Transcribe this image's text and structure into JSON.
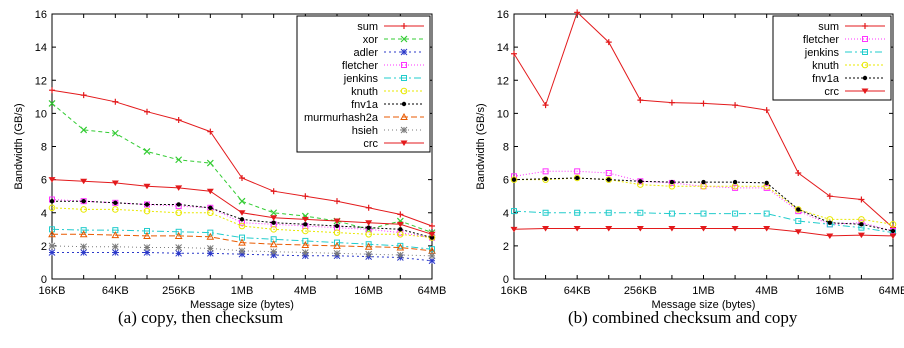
{
  "chart_data": [
    {
      "type": "line",
      "caption": "(a) copy, then checksum",
      "xlabel": "Message size (bytes)",
      "ylabel": "Bandwidth (GB/s)",
      "x": [
        "16KB",
        "32KB",
        "64KB",
        "128KB",
        "256KB",
        "512KB",
        "1MB",
        "2MB",
        "4MB",
        "8MB",
        "16MB",
        "32MB",
        "64MB"
      ],
      "xticks": [
        "16KB",
        "64KB",
        "256KB",
        "1MB",
        "4MB",
        "16MB",
        "64MB"
      ],
      "ylim": [
        0,
        16
      ],
      "yticks": [
        0,
        2,
        4,
        6,
        8,
        10,
        12,
        14,
        16
      ],
      "legend_position": "top-right",
      "series": [
        {
          "name": "sum",
          "color": "#e31a1c",
          "dash": "",
          "marker": "plus",
          "values": [
            11.4,
            11.1,
            10.7,
            10.1,
            9.6,
            8.9,
            6.1,
            5.3,
            5.0,
            4.7,
            4.3,
            3.9,
            3.2
          ]
        },
        {
          "name": "xor",
          "color": "#33cc33",
          "dash": "4 3",
          "marker": "x",
          "values": [
            10.6,
            9.0,
            8.8,
            7.7,
            7.2,
            7.0,
            4.7,
            4.0,
            3.8,
            3.5,
            3.0,
            3.5,
            2.8
          ]
        },
        {
          "name": "adler",
          "color": "#2b38c9",
          "dash": "2 3",
          "marker": "star",
          "values": [
            1.6,
            1.6,
            1.6,
            1.6,
            1.55,
            1.55,
            1.5,
            1.45,
            1.4,
            1.4,
            1.35,
            1.3,
            1.1
          ]
        },
        {
          "name": "fletcher",
          "color": "#ff33ff",
          "dash": "1 2",
          "marker": "square",
          "values": [
            4.8,
            4.7,
            4.6,
            4.5,
            4.4,
            4.3,
            3.4,
            3.3,
            3.2,
            3.1,
            3.0,
            2.8,
            2.5
          ]
        },
        {
          "name": "jenkins",
          "color": "#22cccc",
          "dash": "7 3 2 3",
          "marker": "square",
          "values": [
            3.0,
            2.95,
            2.95,
            2.9,
            2.85,
            2.8,
            2.5,
            2.4,
            2.3,
            2.2,
            2.1,
            2.0,
            1.8
          ]
        },
        {
          "name": "knuth",
          "color": "#e8e800",
          "dash": "2 2",
          "marker": "circle",
          "values": [
            4.3,
            4.2,
            4.2,
            4.1,
            4.0,
            4.0,
            3.2,
            3.0,
            2.9,
            2.8,
            2.7,
            2.7,
            2.5
          ]
        },
        {
          "name": "fnv1a",
          "color": "#000000",
          "dash": "2 2",
          "marker": "dot",
          "values": [
            4.7,
            4.7,
            4.6,
            4.5,
            4.5,
            4.3,
            3.6,
            3.4,
            3.3,
            3.2,
            3.1,
            3.0,
            2.5
          ]
        },
        {
          "name": "murmurhash2a",
          "color": "#e85a00",
          "dash": "6 3",
          "marker": "triangle",
          "values": [
            2.7,
            2.7,
            2.65,
            2.6,
            2.6,
            2.55,
            2.2,
            2.1,
            2.05,
            2.0,
            1.95,
            1.9,
            1.7
          ]
        },
        {
          "name": "hsieh",
          "color": "#7a7a7a",
          "dash": "1 3",
          "marker": "star",
          "values": [
            2.0,
            1.95,
            1.95,
            1.9,
            1.9,
            1.85,
            1.7,
            1.65,
            1.6,
            1.55,
            1.5,
            1.45,
            1.4
          ]
        },
        {
          "name": "crc",
          "color": "#e31a1c",
          "dash": "",
          "marker": "tridown",
          "values": [
            6.0,
            5.9,
            5.8,
            5.6,
            5.5,
            5.3,
            4.0,
            3.7,
            3.6,
            3.5,
            3.4,
            3.3,
            2.7
          ]
        }
      ]
    },
    {
      "type": "line",
      "caption": "(b) combined checksum and copy",
      "xlabel": "Message size (bytes)",
      "ylabel": "Bandwidth (GB/s)",
      "x": [
        "16KB",
        "32KB",
        "64KB",
        "128KB",
        "256KB",
        "512KB",
        "1MB",
        "2MB",
        "4MB",
        "8MB",
        "16MB",
        "32MB",
        "64MB"
      ],
      "xticks": [
        "16KB",
        "64KB",
        "256KB",
        "1MB",
        "4MB",
        "16MB",
        "64MB"
      ],
      "ylim": [
        0,
        16
      ],
      "yticks": [
        0,
        2,
        4,
        6,
        8,
        10,
        12,
        14,
        16
      ],
      "legend_position": "top-right",
      "series": [
        {
          "name": "sum",
          "color": "#e31a1c",
          "dash": "",
          "marker": "plus",
          "values": [
            13.6,
            10.5,
            16.1,
            14.3,
            10.8,
            10.65,
            10.6,
            10.5,
            10.2,
            6.4,
            5.0,
            4.8,
            3.1
          ]
        },
        {
          "name": "fletcher",
          "color": "#ff33ff",
          "dash": "1 2",
          "marker": "square",
          "values": [
            6.2,
            6.5,
            6.5,
            6.4,
            5.9,
            5.8,
            5.6,
            5.5,
            5.5,
            4.1,
            3.3,
            3.4,
            2.9
          ]
        },
        {
          "name": "jenkins",
          "color": "#22cccc",
          "dash": "7 3 2 3",
          "marker": "square",
          "values": [
            4.1,
            4.0,
            4.0,
            4.0,
            4.0,
            3.95,
            3.95,
            3.95,
            3.95,
            3.5,
            3.3,
            3.1,
            2.8
          ]
        },
        {
          "name": "knuth",
          "color": "#e8e800",
          "dash": "2 2",
          "marker": "circle",
          "values": [
            6.0,
            6.0,
            6.1,
            6.0,
            5.7,
            5.6,
            5.6,
            5.6,
            5.6,
            4.2,
            3.6,
            3.6,
            3.3
          ]
        },
        {
          "name": "fnv1a",
          "color": "#000000",
          "dash": "2 2",
          "marker": "dot",
          "values": [
            6.0,
            6.05,
            6.1,
            6.0,
            5.9,
            5.85,
            5.85,
            5.85,
            5.8,
            4.2,
            3.4,
            3.3,
            2.9
          ]
        },
        {
          "name": "crc",
          "color": "#e31a1c",
          "dash": "",
          "marker": "tridown",
          "values": [
            3.0,
            3.05,
            3.05,
            3.05,
            3.05,
            3.05,
            3.05,
            3.05,
            3.05,
            2.85,
            2.6,
            2.65,
            2.6
          ]
        }
      ]
    }
  ]
}
